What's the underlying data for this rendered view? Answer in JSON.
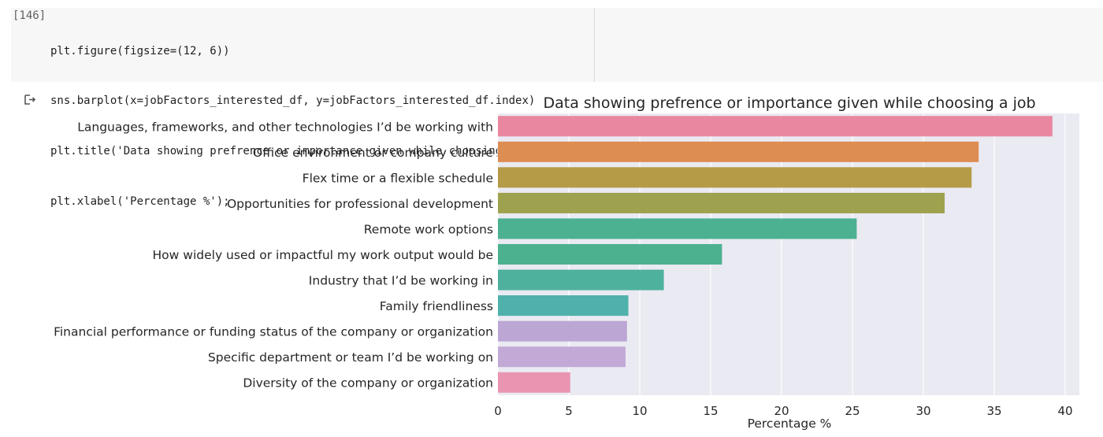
{
  "code_cell": {
    "execution_count": "[146]",
    "lines": [
      "plt.figure(figsize=(12, 6))",
      "sns.barplot(x=jobFactors_interested_df, y=jobFactors_interested_df.index)",
      "plt.title('Data showing prefrence or importance given while choosing a job');",
      "plt.xlabel('Percentage %');"
    ]
  },
  "output": {
    "icon": "output-arrow-icon"
  },
  "chart_data": {
    "type": "bar",
    "orientation": "horizontal",
    "title": "Data showing prefrence or importance given while choosing a job",
    "xlabel": "Percentage %",
    "ylabel": "",
    "xlim": [
      0,
      41
    ],
    "xticks": [
      0,
      5,
      10,
      15,
      20,
      25,
      30,
      35,
      40
    ],
    "grid": true,
    "background": "#eaeaf2",
    "categories": [
      "Languages, frameworks, and other technologies I’d be working with",
      "Office environment or company culture",
      "Flex time or a flexible schedule",
      "Opportunities for professional development",
      "Remote work options",
      "How widely used or impactful my work output would be",
      "Industry that I’d be working in",
      "Family friendliness",
      "Financial performance or funding status of the company or organization",
      "Specific department or team I’d be working on",
      "Diversity of the company or organization"
    ],
    "values": [
      39.1,
      33.9,
      33.4,
      31.5,
      25.3,
      15.8,
      11.7,
      9.2,
      9.1,
      9.0,
      5.1
    ],
    "colors": [
      "#e8879f",
      "#dd8c52",
      "#b59b47",
      "#9ea24f",
      "#4bb190",
      "#4cb18f",
      "#4eb19d",
      "#4fb1aa",
      "#bca6d4",
      "#c3aad6",
      "#e995b2"
    ]
  }
}
